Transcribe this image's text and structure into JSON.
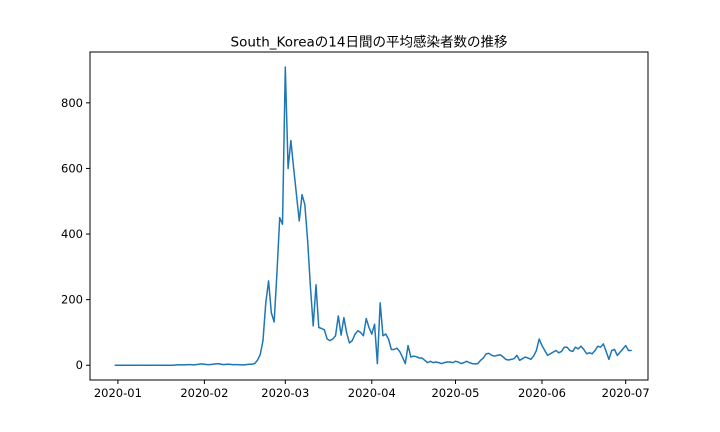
{
  "chart_data": {
    "type": "line",
    "title": "South_Koreaの14日間の平均感染者数の推移",
    "xlabel": "",
    "ylabel": "",
    "x_start": "2019-12-31",
    "x_end": "2020-06-30",
    "xlim": [
      "2019-12-22",
      "2020-07-09"
    ],
    "ylim": [
      -45,
      955
    ],
    "x_ticks": [
      "2020-01-01",
      "2020-02-01",
      "2020-03-01",
      "2020-04-01",
      "2020-05-01",
      "2020-06-01",
      "2020-07-01"
    ],
    "x_tick_labels": [
      "2020-01",
      "2020-02",
      "2020-03",
      "2020-04",
      "2020-05",
      "2020-06",
      "2020-07"
    ],
    "y_ticks": [
      0,
      200,
      400,
      600,
      800
    ],
    "y_tick_labels": [
      "0",
      "200",
      "400",
      "600",
      "800"
    ],
    "grid": false,
    "line_color": "#1f77b4",
    "series": [
      {
        "values": [
          0,
          0,
          0,
          0,
          0,
          0,
          0,
          0,
          0,
          0,
          0,
          0,
          0,
          0,
          0,
          0,
          0,
          0,
          0,
          0,
          0,
          0,
          1,
          1,
          1,
          1,
          2,
          2,
          1,
          2,
          3,
          4,
          3,
          2,
          2,
          3,
          4,
          5,
          3,
          2,
          3,
          3,
          2,
          2,
          2,
          1,
          1,
          2,
          3,
          3,
          5,
          15,
          32,
          75,
          190,
          257,
          160,
          132,
          280,
          450,
          430,
          909,
          600,
          685,
          600,
          520,
          440,
          520,
          490,
          380,
          240,
          120,
          245,
          115,
          112,
          108,
          80,
          75,
          80,
          90,
          150,
          92,
          145,
          98,
          68,
          75,
          95,
          105,
          100,
          90,
          142,
          115,
          95,
          125,
          5,
          190,
          90,
          95,
          80,
          48,
          48,
          52,
          42,
          25,
          5,
          60,
          25,
          28,
          26,
          22,
          22,
          15,
          8,
          12,
          8,
          10,
          8,
          5,
          8,
          10,
          10,
          8,
          12,
          10,
          5,
          8,
          12,
          8,
          5,
          4,
          5,
          15,
          22,
          35,
          36,
          30,
          28,
          30,
          32,
          26,
          18,
          16,
          18,
          20,
          30,
          15,
          20,
          25,
          22,
          18,
          28,
          45,
          80,
          60,
          45,
          30,
          35,
          40,
          45,
          38,
          42,
          55,
          55,
          45,
          42,
          55,
          50,
          58,
          48,
          35,
          38,
          35,
          45,
          58,
          55,
          65,
          42,
          18,
          45,
          48,
          30,
          40,
          50,
          60,
          45,
          45
        ]
      }
    ]
  }
}
